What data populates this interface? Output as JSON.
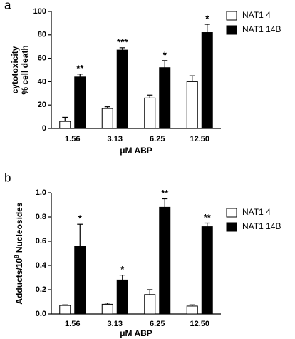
{
  "chart_data": [
    {
      "type": "bar",
      "panel": "a",
      "ylabel": [
        "cytotoxicity",
        "% cell death"
      ],
      "xlabel": "μM ABP",
      "categories": [
        "1.56",
        "3.13",
        "6.25",
        "12.50"
      ],
      "series": [
        {
          "name": "NAT1 4",
          "color": "#ffffff",
          "values": [
            6,
            17,
            26,
            40
          ],
          "errors": [
            3.5,
            1.5,
            2.5,
            5
          ]
        },
        {
          "name": "NAT1 14B",
          "color": "#000000",
          "values": [
            44,
            67,
            52,
            82
          ],
          "errors": [
            2.5,
            2,
            6,
            7
          ]
        }
      ],
      "annotations": [
        "**",
        "***",
        "*",
        "*"
      ],
      "ylim": [
        0,
        100
      ],
      "yticks": [
        0,
        20,
        40,
        60,
        80,
        100
      ]
    },
    {
      "type": "bar",
      "panel": "b",
      "ylabel": [
        "Adducts/10",
        "8",
        " Nucleosides"
      ],
      "xlabel": "μM ABP",
      "categories": [
        "1.56",
        "3.13",
        "6.25",
        "12.50"
      ],
      "series": [
        {
          "name": "NAT1 4",
          "color": "#ffffff",
          "values": [
            0.07,
            0.08,
            0.16,
            0.065
          ],
          "errors": [
            0.005,
            0.01,
            0.04,
            0.01
          ]
        },
        {
          "name": "NAT1 14B",
          "color": "#000000",
          "values": [
            0.56,
            0.28,
            0.88,
            0.72
          ],
          "errors": [
            0.18,
            0.04,
            0.07,
            0.03
          ]
        }
      ],
      "annotations": [
        "*",
        "*",
        "**",
        "**"
      ],
      "ylim": [
        0,
        1
      ],
      "yticks": [
        {
          "value": 0,
          "label": "0.0"
        },
        0.2,
        0.4,
        0.6,
        0.8,
        {
          "value": 1,
          "label": "1.0"
        }
      ]
    }
  ]
}
